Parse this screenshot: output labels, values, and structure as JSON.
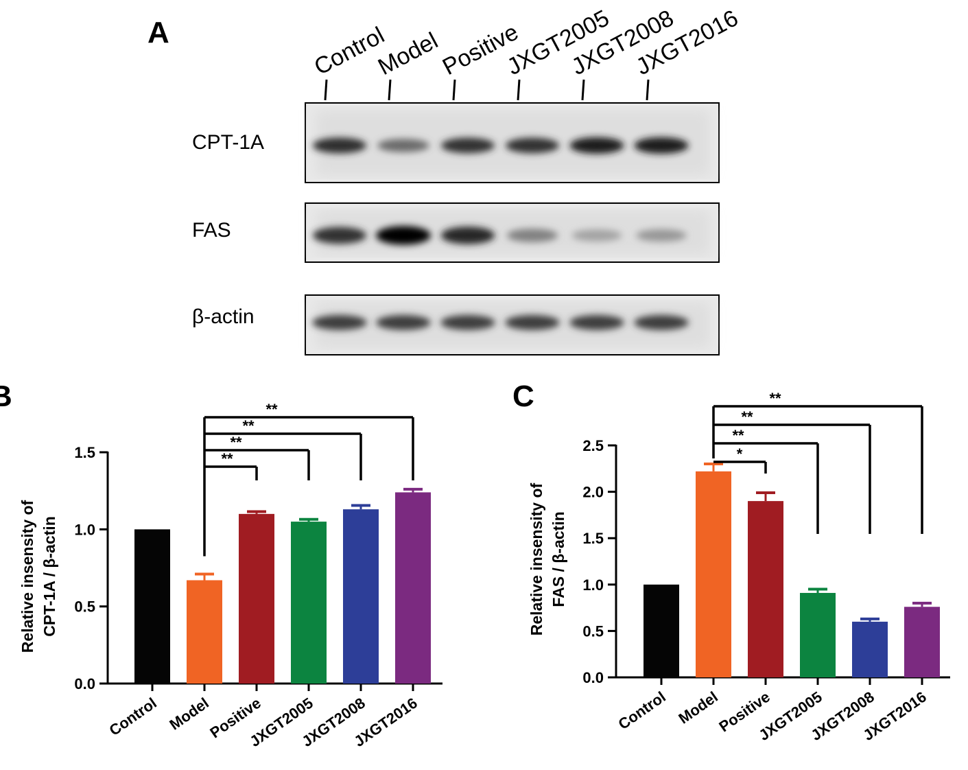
{
  "panel_labels": {
    "a": "A",
    "b": "B",
    "c": "C"
  },
  "blot": {
    "lanes": [
      "Control",
      "Model",
      "Positive",
      "JXGT2005",
      "JXGT2008",
      "JXGT2016"
    ],
    "proteins": [
      {
        "name": "CPT-1A",
        "band_intensity": [
          0.82,
          0.55,
          0.8,
          0.8,
          0.9,
          0.9
        ]
      },
      {
        "name": "FAS",
        "band_intensity": [
          0.8,
          1.0,
          0.85,
          0.45,
          0.3,
          0.35
        ]
      },
      {
        "name": "β-actin",
        "band_intensity": [
          0.75,
          0.75,
          0.75,
          0.75,
          0.75,
          0.75
        ]
      }
    ]
  },
  "chart_data": [
    {
      "type": "bar",
      "panel": "B",
      "categories": [
        "Control",
        "Model",
        "Positive",
        "JXGT2005",
        "JXGT2008",
        "JXGT2016"
      ],
      "values": [
        1.0,
        0.67,
        1.1,
        1.05,
        1.13,
        1.24
      ],
      "errors": [
        0,
        0.04,
        0.015,
        0.015,
        0.025,
        0.02
      ],
      "colors": [
        "#050505",
        "#f06424",
        "#a01c22",
        "#0c8440",
        "#2d3e98",
        "#7b2a80"
      ],
      "ylabel_lines": [
        "Relative insensity of",
        "CPT-1A / β-actin"
      ],
      "ylim": [
        0,
        1.5
      ],
      "yticks": [
        0.0,
        0.5,
        1.0,
        1.5
      ],
      "tick_labels": [
        "0.0",
        "0.5",
        "1.0",
        "1.5"
      ],
      "significance": [
        {
          "from": "Model",
          "to": "Positive",
          "label": "**"
        },
        {
          "from": "Model",
          "to": "JXGT2005",
          "label": "**"
        },
        {
          "from": "Model",
          "to": "JXGT2008",
          "label": "**"
        },
        {
          "from": "Model",
          "to": "JXGT2016",
          "label": "**"
        }
      ]
    },
    {
      "type": "bar",
      "panel": "C",
      "categories": [
        "Control",
        "Model",
        "Positive",
        "JXGT2005",
        "JXGT2008",
        "JXGT2016"
      ],
      "values": [
        1.0,
        2.22,
        1.9,
        0.91,
        0.6,
        0.76
      ],
      "errors": [
        0,
        0.08,
        0.09,
        0.04,
        0.03,
        0.04
      ],
      "colors": [
        "#050505",
        "#f06424",
        "#a01c22",
        "#0c8440",
        "#2d3e98",
        "#7b2a80"
      ],
      "ylabel_lines": [
        "Relative insensity of",
        "FAS / β-actin"
      ],
      "ylim": [
        0,
        2.5
      ],
      "yticks": [
        0.0,
        0.5,
        1.0,
        1.5,
        2.0,
        2.5
      ],
      "tick_labels": [
        "0.0",
        "0.5",
        "1.0",
        "1.5",
        "2.0",
        "2.5"
      ],
      "significance": [
        {
          "from": "Model",
          "to": "Positive",
          "label": "*"
        },
        {
          "from": "Model",
          "to": "JXGT2005",
          "label": "**"
        },
        {
          "from": "Model",
          "to": "JXGT2008",
          "label": "**"
        },
        {
          "from": "Model",
          "to": "JXGT2016",
          "label": "**"
        }
      ]
    }
  ]
}
